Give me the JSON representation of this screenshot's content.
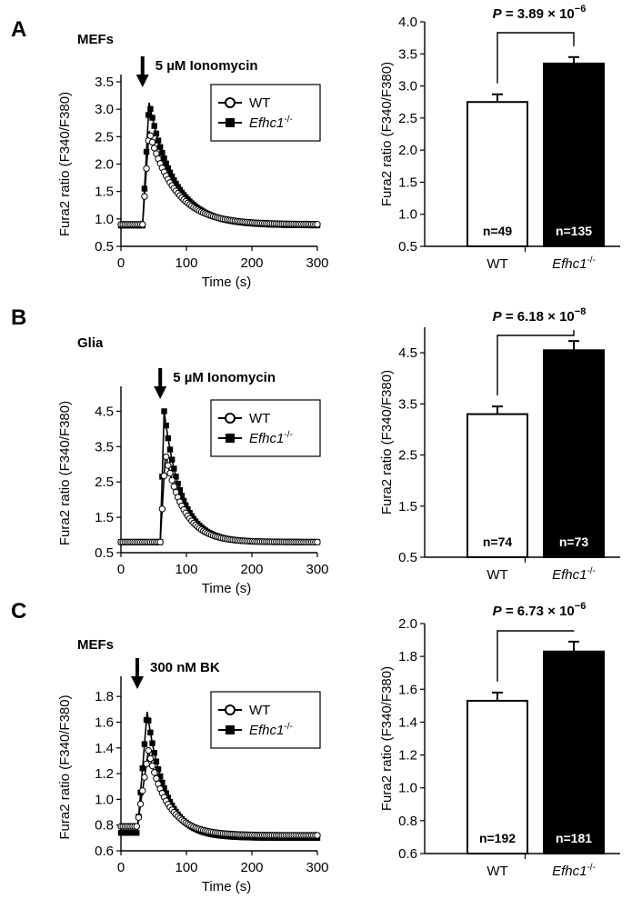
{
  "figure": {
    "panels": [
      {
        "letter": "A",
        "cell": "MEFs",
        "stimulus": "5 µM Ionomycin",
        "legend": {
          "wt": "WT",
          "ko_prefix": "Efhc1",
          "ko_sup": "-/-"
        },
        "bar_labels": {
          "wt": "WT",
          "ko_prefix": "Efhc1",
          "ko_sup": "-/-"
        },
        "pvalue": {
          "prefix": "P",
          "mid": " = 3.89 × 10",
          "exp": "−6"
        }
      },
      {
        "letter": "B",
        "cell": "Glia",
        "stimulus": "5 µM Ionomycin",
        "legend": {
          "wt": "WT",
          "ko_prefix": "Efhc1",
          "ko_sup": "-/-"
        },
        "bar_labels": {
          "wt": "WT",
          "ko_prefix": "Efhc1",
          "ko_sup": "-/-"
        },
        "pvalue": {
          "prefix": "P",
          "mid": " = 6.18 × 10",
          "exp": "−8"
        }
      },
      {
        "letter": "C",
        "cell": "MEFs",
        "stimulus": "300 nM BK",
        "legend": {
          "wt": "WT",
          "ko_prefix": "Efhc1",
          "ko_sup": "-/-"
        },
        "bar_labels": {
          "wt": "WT",
          "ko_prefix": "Efhc1",
          "ko_sup": "-/-"
        },
        "pvalue": {
          "prefix": "P",
          "mid": " = 6.73 × 10",
          "exp": "−6"
        }
      }
    ]
  },
  "chart_data": [
    {
      "type": "line",
      "xlabel": "Time (s)",
      "ylabel": "Fura2 ratio (F340/F380)",
      "xlim": [
        0,
        300
      ],
      "ylim": [
        0.5,
        3.5
      ],
      "xticks": [
        0,
        100,
        200,
        300
      ],
      "yticks": [
        0.5,
        1.0,
        1.5,
        2.0,
        2.5,
        3.0,
        3.5
      ],
      "ytick_labels": [
        "0.5",
        "1.0",
        "1.5",
        "2.0",
        "2.5",
        "3.0",
        "3.5"
      ],
      "stimulus_time": 33,
      "series": [
        {
          "name": "WT",
          "marker": "open-circle",
          "baseline": 0.9,
          "peak": 2.6,
          "peak_time": 43,
          "plateau": 0.9,
          "tau": 40
        },
        {
          "name": "Efhc1-/-",
          "marker": "filled-square",
          "baseline": 0.88,
          "peak": 3.12,
          "peak_time": 43,
          "plateau": 0.88,
          "tau": 38
        }
      ]
    },
    {
      "type": "bar",
      "categories": [
        "WT",
        "Efhc1-/-"
      ],
      "values": [
        2.75,
        3.35
      ],
      "errors": [
        0.12,
        0.1
      ],
      "n_labels": [
        "n=49",
        "n=135"
      ],
      "ylabel": "Fura2 ratio (F340/F380)",
      "ylim": [
        0.5,
        4.0
      ],
      "yticks": [
        0.5,
        1.0,
        1.5,
        2.0,
        2.5,
        3.0,
        3.5,
        4.0
      ],
      "ytick_labels": [
        "0.5",
        "1.0",
        "1.5",
        "2.0",
        "2.5",
        "3.0",
        "3.5",
        "4.0"
      ]
    },
    {
      "type": "line",
      "xlabel": "Time (s)",
      "ylabel": "Fura2 ratio (F340/F380)",
      "xlim": [
        0,
        300
      ],
      "ylim": [
        0.5,
        5.0
      ],
      "xticks": [
        0,
        100,
        200,
        300
      ],
      "yticks": [
        0.5,
        1.5,
        2.5,
        3.5,
        4.5
      ],
      "ytick_labels": [
        "0.5",
        "1.5",
        "2.5",
        "3.5",
        "4.5"
      ],
      "stimulus_time": 60,
      "series": [
        {
          "name": "WT",
          "marker": "open-circle",
          "baseline": 0.8,
          "peak": 3.3,
          "peak_time": 68,
          "plateau": 0.8,
          "tau": 28
        },
        {
          "name": "Efhc1-/-",
          "marker": "filled-square",
          "baseline": 0.8,
          "peak": 4.5,
          "peak_time": 66,
          "plateau": 0.8,
          "tau": 26
        }
      ]
    },
    {
      "type": "bar",
      "categories": [
        "WT",
        "Efhc1-/-"
      ],
      "values": [
        3.3,
        4.55
      ],
      "errors": [
        0.15,
        0.18
      ],
      "n_labels": [
        "n=74",
        "n=73"
      ],
      "ylabel": "Fura2 ratio (F340/F380)",
      "ylim": [
        0.5,
        5.0
      ],
      "yticks": [
        0.5,
        1.5,
        2.5,
        3.5,
        4.5
      ],
      "ytick_labels": [
        "0.5",
        "1.5",
        "2.5",
        "3.5",
        "4.5"
      ]
    },
    {
      "type": "line",
      "xlabel": "Time (s)",
      "ylabel": "Fura2 ratio (F340/F380)",
      "xlim": [
        0,
        300
      ],
      "ylim": [
        0.6,
        1.9
      ],
      "xticks": [
        0,
        100,
        200,
        300
      ],
      "yticks": [
        0.6,
        0.8,
        1.0,
        1.2,
        1.4,
        1.6,
        1.8
      ],
      "ytick_labels": [
        "0.6",
        "0.8",
        "1.0",
        "1.2",
        "1.4",
        "1.6",
        "1.8"
      ],
      "stimulus_time": 25,
      "series": [
        {
          "name": "WT",
          "marker": "open-circle",
          "baseline": 0.79,
          "peak": 1.38,
          "peak_time": 42,
          "plateau": 0.72,
          "tau": 30
        },
        {
          "name": "Efhc1-/-",
          "marker": "filled-square",
          "baseline": 0.74,
          "peak": 1.68,
          "peak_time": 40,
          "plateau": 0.7,
          "tau": 28
        }
      ]
    },
    {
      "type": "bar",
      "categories": [
        "WT",
        "Efhc1-/-"
      ],
      "values": [
        1.53,
        1.83
      ],
      "errors": [
        0.05,
        0.06
      ],
      "n_labels": [
        "n=192",
        "n=181"
      ],
      "ylabel": "Fura2 ratio (F340/F380)",
      "ylim": [
        0.6,
        2.0
      ],
      "yticks": [
        0.6,
        0.8,
        1.0,
        1.2,
        1.4,
        1.6,
        1.8,
        2.0
      ],
      "ytick_labels": [
        "0.6",
        "0.8",
        "1.0",
        "1.2",
        "1.4",
        "1.6",
        "1.8",
        "2.0"
      ]
    }
  ]
}
